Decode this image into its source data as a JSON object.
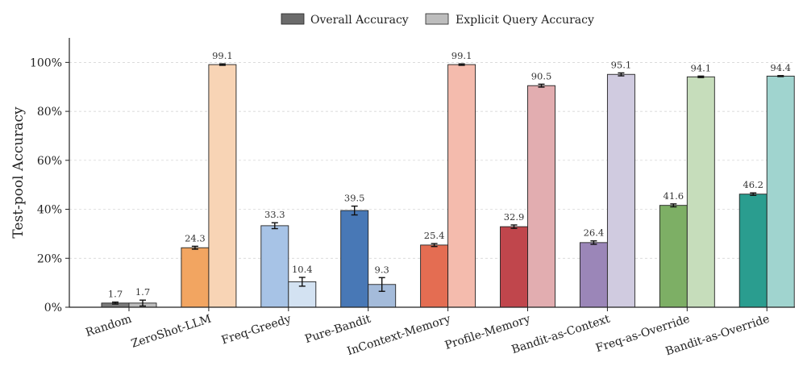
{
  "chart_data": {
    "type": "bar",
    "ylabel": "Test-pool Accuracy",
    "ylim": [
      0,
      110
    ],
    "yticks": [
      "0%",
      "20%",
      "40%",
      "60%",
      "80%",
      "100%"
    ],
    "ytick_values": [
      0,
      20,
      40,
      60,
      80,
      100
    ],
    "grid": "y-dashed",
    "legend_position": "top-center",
    "categories": [
      "Random",
      "ZeroShot-LLM",
      "Freq-Greedy",
      "Pure-Bandit",
      "InContext-Memory",
      "Profile-Memory",
      "Bandit-as-Context",
      "Freq-as-Override",
      "Bandit-as-Override"
    ],
    "series": [
      {
        "name": "Overall Accuracy",
        "legend_color": "#6b6b6b",
        "values": [
          1.7,
          24.3,
          33.3,
          39.5,
          25.4,
          32.9,
          26.4,
          41.6,
          46.2
        ],
        "errors": [
          0.4,
          0.6,
          1.2,
          1.8,
          0.6,
          0.7,
          0.7,
          0.6,
          0.5
        ],
        "labels": [
          "1.7",
          "24.3",
          "33.3",
          "39.5",
          "25.4",
          "32.9",
          "26.4",
          "41.6",
          "46.2"
        ],
        "colors": [
          "#7b7b7b",
          "#f2a561",
          "#a7c3e6",
          "#4878b6",
          "#e46d52",
          "#c0464c",
          "#9b86b8",
          "#7daf65",
          "#2a9d8f"
        ]
      },
      {
        "name": "Explicit Query Accuracy",
        "legend_color": "#bdbdbd",
        "values": [
          1.7,
          99.1,
          10.4,
          9.3,
          99.1,
          90.5,
          95.1,
          94.1,
          94.4
        ],
        "errors": [
          1.2,
          0.3,
          1.8,
          2.8,
          0.3,
          0.6,
          0.6,
          0.3,
          0.2
        ],
        "labels": [
          "1.7",
          "99.1",
          "10.4",
          "9.3",
          "99.1",
          "90.5",
          "95.1",
          "94.1",
          "94.4"
        ],
        "colors": [
          "#bdbdbd",
          "#f8d4b5",
          "#d3e2f2",
          "#a4bbda",
          "#f4bbad",
          "#e2adb0",
          "#d0cbe0",
          "#c6ddbb",
          "#a0d4cf"
        ]
      }
    ]
  }
}
